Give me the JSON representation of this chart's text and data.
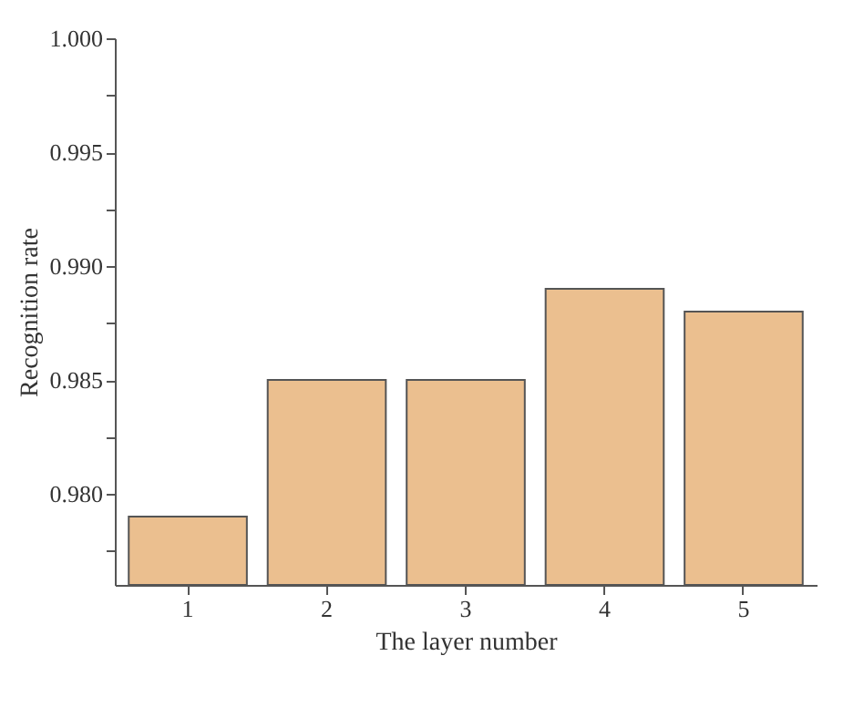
{
  "chart_data": {
    "type": "bar",
    "xlabel": "The layer number",
    "ylabel": "Recognition rate",
    "categories": [
      "1",
      "2",
      "3",
      "4",
      "5"
    ],
    "values": [
      0.979,
      0.985,
      0.985,
      0.989,
      0.988
    ],
    "color": "#ebbf8f",
    "ylim": [
      0.976,
      1.0
    ],
    "yticks": [
      {
        "value": 0.9775,
        "label": null
      },
      {
        "value": 0.98,
        "label": "0.980"
      },
      {
        "value": 0.9825,
        "label": null
      },
      0.985,
      {
        "value": 0.9875,
        "label": null
      },
      {
        "value": 0.99,
        "label": "0.990"
      },
      {
        "value": 0.9925,
        "label": null
      },
      0.995,
      {
        "value": 0.9975,
        "label": null
      },
      {
        "value": 1.0,
        "label": "1.000"
      }
    ],
    "grid": false,
    "legend": false
  }
}
